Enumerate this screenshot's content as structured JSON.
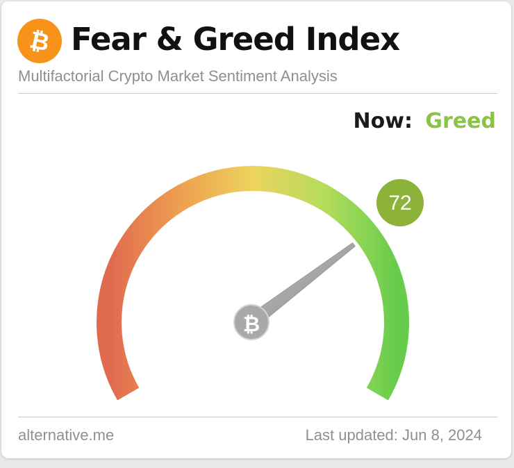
{
  "header": {
    "logo_icon": "bitcoin-icon",
    "title": "Fear & Greed Index",
    "subtitle": "Multifactorial Crypto Market Sentiment Analysis"
  },
  "status": {
    "now_label": "Now:",
    "sentiment": "Greed",
    "sentiment_color": "#8bc34a"
  },
  "gauge": {
    "value": "72",
    "min": 0,
    "max": 100,
    "badge_color": "#8db23a",
    "hub_icon": "bitcoin-icon"
  },
  "footer": {
    "source": "alternative.me",
    "last_updated": "Last updated: Jun 8, 2024"
  }
}
